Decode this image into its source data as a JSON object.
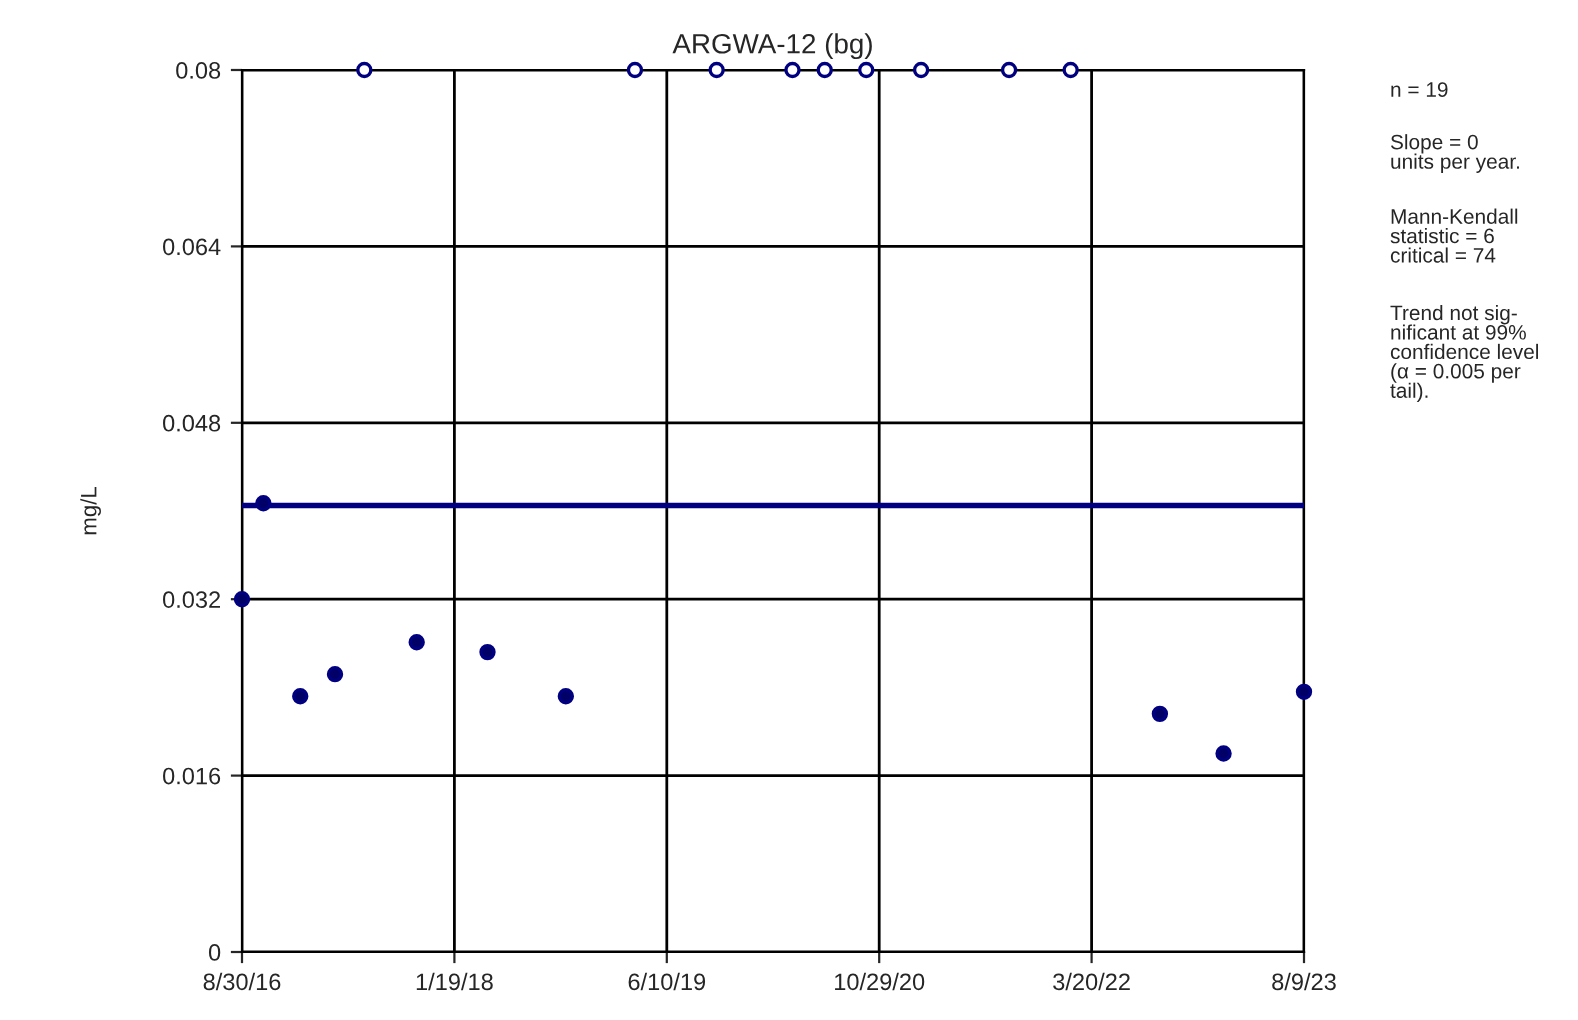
{
  "chart_data": {
    "type": "scatter",
    "title": "ARGWA-12 (bg)",
    "ylabel": "mg/L",
    "series": [
      {
        "color": "#000066",
        "x": [
          "2016-08-30",
          "2016-10-20",
          "2017-01-16",
          "2017-04-09",
          "2017-10-21",
          "2018-04-08",
          "2018-10-12",
          "2022-08-30",
          "2023-01-29",
          "2023-08-09"
        ],
        "values": [
          0.032,
          0.0407,
          0.0232,
          0.0252,
          0.0281,
          0.0272,
          0.0232,
          0.0216,
          0.018,
          0.0236
        ]
      },
      {
        "color": "#ffffff",
        "x": [
          "2017-06-18",
          "2019-03-26",
          "2019-10-07",
          "2020-04-05",
          "2020-06-21",
          "2020-09-28",
          "2021-02-06",
          "2021-09-04",
          "2022-01-29"
        ],
        "values": [
          0.08,
          0.08,
          0.08,
          0.08,
          0.08,
          0.08,
          0.08,
          0.08,
          0.08
        ]
      }
    ],
    "ref_lines": [
      {
        "axis": "y",
        "value": 0.0405,
        "color": "#000080"
      }
    ],
    "xlim": [
      "2016-08-30",
      "2023-08-09"
    ],
    "xticks": [
      {
        "value": "2016-08-30",
        "label": "8/30/16"
      },
      {
        "value": "2018-01-19",
        "label": "1/19/18"
      },
      {
        "value": "2019-06-10",
        "label": "6/10/19"
      },
      {
        "value": "2020-10-29",
        "label": "10/29/20"
      },
      {
        "value": "2022-03-20",
        "label": "3/20/22"
      },
      {
        "value": "2023-08-09",
        "label": "8/9/23"
      }
    ],
    "ylim": [
      0,
      0.08
    ],
    "yticks": [
      0,
      0.016,
      0.032,
      0.048,
      0.064,
      0.08
    ],
    "grid": true,
    "marker": "circle",
    "legend": false,
    "annotations": [
      "n = 19",
      "Slope = 0\nunits per year.",
      "Mann-Kendall\nstatistic = 6\ncritical = 74",
      "Trend not sig-\nnificant at 99%\nconfidence level\n(α = 0.005 per\ntail)."
    ]
  }
}
